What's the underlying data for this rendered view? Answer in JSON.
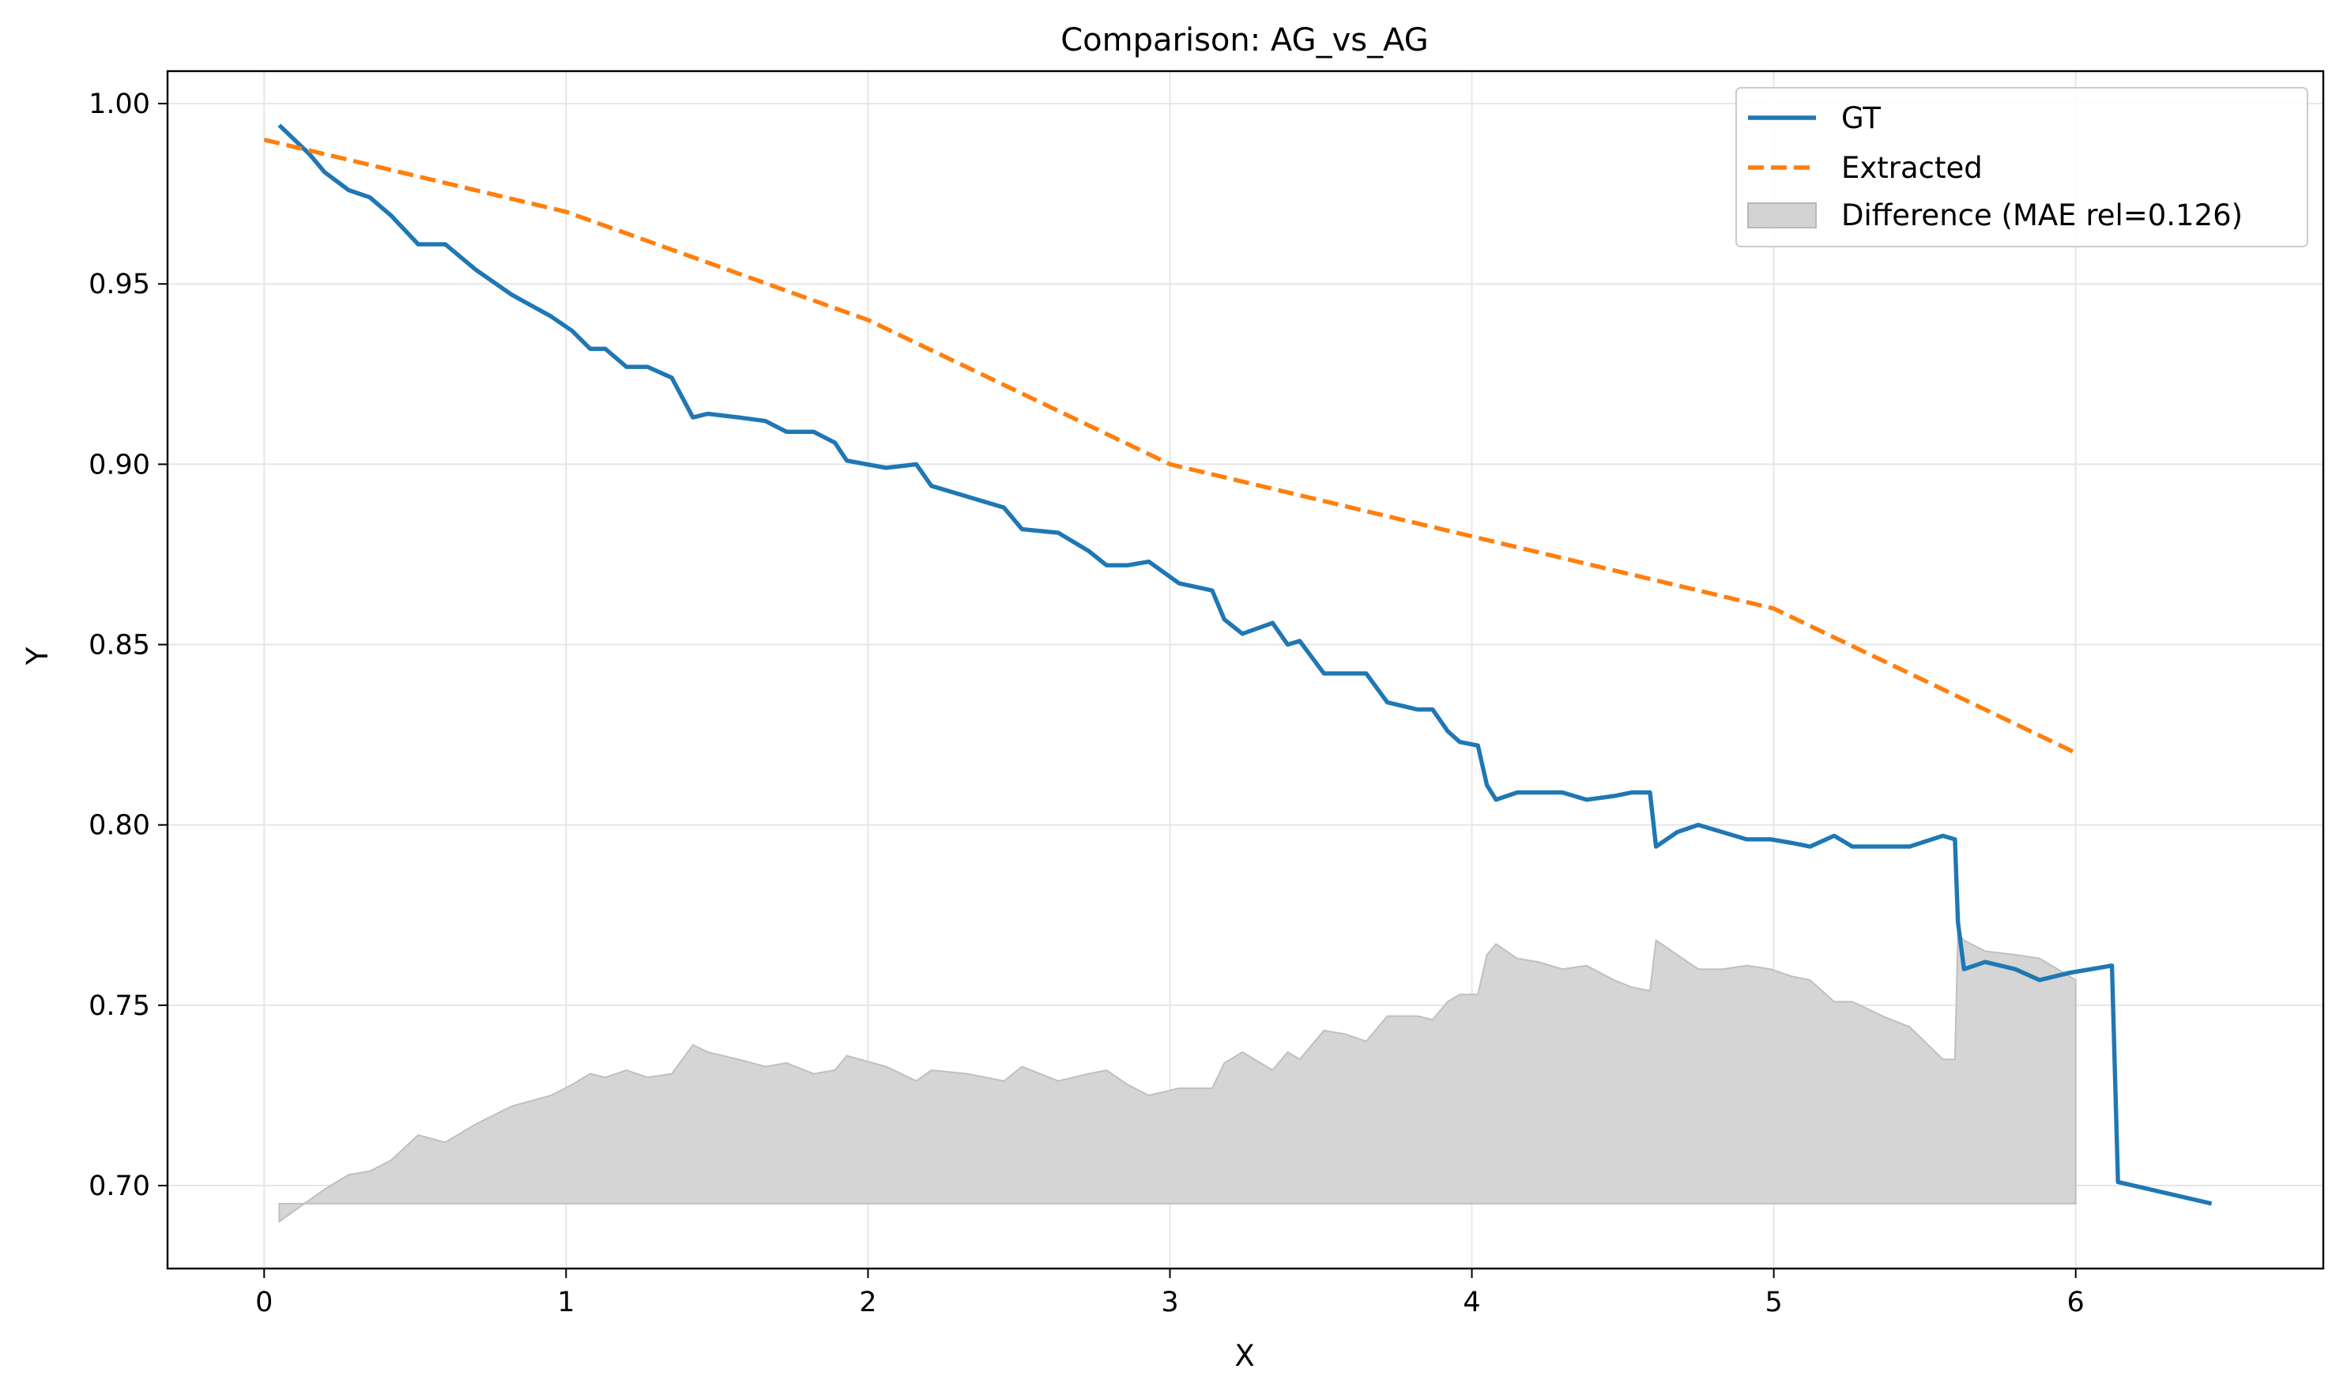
{
  "chart_data": {
    "type": "line",
    "title": "Comparison: AG_vs_AG",
    "xlabel": "X",
    "ylabel": "Y",
    "xlim": [
      -0.32,
      6.82
    ],
    "ylim": [
      0.677,
      1.009
    ],
    "x_ticks": [
      0,
      1,
      2,
      3,
      4,
      5,
      6
    ],
    "y_ticks": [
      0.7,
      0.75,
      0.8,
      0.85,
      0.9,
      0.95,
      1.0
    ],
    "x_tick_labels": [
      "0",
      "1",
      "2",
      "3",
      "4",
      "5",
      "6"
    ],
    "y_tick_labels": [
      "0.70",
      "0.75",
      "0.80",
      "0.85",
      "0.90",
      "0.95",
      "1.00"
    ],
    "grid": true,
    "legend_position": "top-right",
    "series": [
      {
        "name": "GT",
        "color": "#1f77b4",
        "style": "solid",
        "x": [
          0.05,
          0.1,
          0.15,
          0.2,
          0.28,
          0.35,
          0.42,
          0.51,
          0.6,
          0.7,
          0.82,
          0.95,
          1.02,
          1.08,
          1.13,
          1.2,
          1.27,
          1.35,
          1.42,
          1.47,
          1.57,
          1.66,
          1.73,
          1.82,
          1.89,
          1.93,
          2.06,
          2.16,
          2.21,
          2.33,
          2.45,
          2.51,
          2.63,
          2.73,
          2.79,
          2.86,
          2.93,
          3.03,
          3.14,
          3.18,
          3.24,
          3.34,
          3.39,
          3.43,
          3.51,
          3.58,
          3.65,
          3.72,
          3.82,
          3.87,
          3.92,
          3.96,
          4.02,
          4.05,
          4.08,
          4.15,
          4.22,
          4.3,
          4.38,
          4.47,
          4.53,
          4.59,
          4.61,
          4.68,
          4.75,
          4.83,
          4.91,
          4.99,
          5.06,
          5.12,
          5.2,
          5.26,
          5.36,
          5.45,
          5.56,
          5.6,
          5.61,
          5.63,
          5.7,
          5.8,
          5.88,
          5.98,
          6.12,
          6.14,
          6.45
        ],
        "y": [
          0.994,
          0.99,
          0.986,
          0.981,
          0.976,
          0.974,
          0.969,
          0.961,
          0.961,
          0.954,
          0.947,
          0.941,
          0.937,
          0.932,
          0.932,
          0.927,
          0.927,
          0.924,
          0.913,
          0.914,
          0.913,
          0.912,
          0.909,
          0.909,
          0.906,
          0.901,
          0.899,
          0.9,
          0.894,
          0.891,
          0.888,
          0.882,
          0.881,
          0.876,
          0.872,
          0.872,
          0.873,
          0.867,
          0.865,
          0.857,
          0.853,
          0.856,
          0.85,
          0.851,
          0.842,
          0.842,
          0.842,
          0.834,
          0.832,
          0.832,
          0.826,
          0.823,
          0.822,
          0.811,
          0.807,
          0.809,
          0.809,
          0.809,
          0.807,
          0.808,
          0.809,
          0.809,
          0.794,
          0.798,
          0.8,
          0.798,
          0.796,
          0.796,
          0.795,
          0.794,
          0.797,
          0.794,
          0.794,
          0.794,
          0.797,
          0.796,
          0.773,
          0.76,
          0.762,
          0.76,
          0.757,
          0.759,
          0.761,
          0.701,
          0.695
        ]
      },
      {
        "name": "Extracted",
        "color": "#ff7f0e",
        "style": "dashed",
        "x": [
          0,
          1,
          2,
          3,
          4,
          5,
          6
        ],
        "y": [
          0.99,
          0.97,
          0.94,
          0.9,
          0.88,
          0.86,
          0.82
        ]
      }
    ],
    "difference_area": {
      "name": "Difference (MAE rel=0.126)",
      "color": "#d3d3d3",
      "baseline": 0.695,
      "x": [
        0.05,
        0.1,
        0.15,
        0.2,
        0.28,
        0.35,
        0.42,
        0.51,
        0.6,
        0.7,
        0.82,
        0.95,
        1.02,
        1.08,
        1.13,
        1.2,
        1.27,
        1.35,
        1.42,
        1.47,
        1.57,
        1.66,
        1.73,
        1.82,
        1.89,
        1.93,
        2.06,
        2.16,
        2.21,
        2.33,
        2.45,
        2.51,
        2.63,
        2.73,
        2.79,
        2.86,
        2.93,
        3.03,
        3.14,
        3.18,
        3.24,
        3.34,
        3.39,
        3.43,
        3.51,
        3.58,
        3.65,
        3.72,
        3.82,
        3.87,
        3.92,
        3.96,
        4.02,
        4.05,
        4.08,
        4.15,
        4.22,
        4.3,
        4.38,
        4.47,
        4.53,
        4.59,
        4.61,
        4.68,
        4.75,
        4.83,
        4.91,
        4.99,
        5.06,
        5.12,
        5.2,
        5.26,
        5.36,
        5.45,
        5.56,
        5.6,
        5.61,
        5.63,
        5.7,
        5.8,
        5.88,
        5.98,
        6.0
      ],
      "y": [
        0.69,
        0.693,
        0.696,
        0.699,
        0.703,
        0.704,
        0.707,
        0.714,
        0.712,
        0.717,
        0.722,
        0.725,
        0.728,
        0.731,
        0.73,
        0.732,
        0.73,
        0.731,
        0.739,
        0.737,
        0.735,
        0.733,
        0.734,
        0.731,
        0.732,
        0.736,
        0.733,
        0.729,
        0.732,
        0.731,
        0.729,
        0.733,
        0.729,
        0.731,
        0.732,
        0.728,
        0.725,
        0.727,
        0.727,
        0.734,
        0.737,
        0.732,
        0.737,
        0.735,
        0.743,
        0.742,
        0.74,
        0.747,
        0.747,
        0.746,
        0.751,
        0.753,
        0.753,
        0.764,
        0.767,
        0.763,
        0.762,
        0.76,
        0.761,
        0.757,
        0.755,
        0.754,
        0.768,
        0.764,
        0.76,
        0.76,
        0.761,
        0.76,
        0.758,
        0.757,
        0.751,
        0.751,
        0.747,
        0.744,
        0.735,
        0.735,
        0.77,
        0.768,
        0.765,
        0.764,
        0.763,
        0.758,
        0.757
      ]
    }
  }
}
